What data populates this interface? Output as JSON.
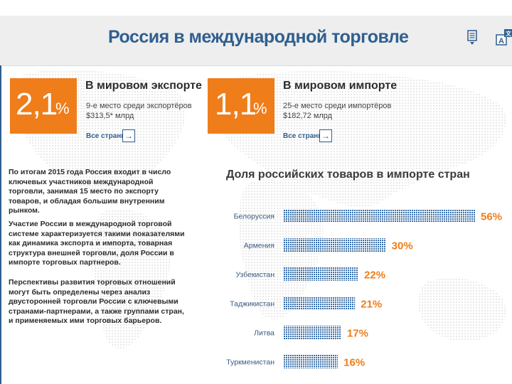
{
  "page": {
    "title": "Россия в международной торговле"
  },
  "export": {
    "pct_number": "2,1",
    "pct_sign": "%",
    "title": "В мировом экспорте",
    "line1": "9-е место среди экспортёров",
    "line2": "$313,5* млрд",
    "link": "Все страны"
  },
  "import": {
    "pct_number": "1,1",
    "pct_sign": "%",
    "title": "В мировом импорте",
    "line1": "25-е место среди импортёров",
    "line2": "$182,72 млрд",
    "link": "Все страны"
  },
  "paragraphs": [
    "По итогам 2015 года Россия входит в число ключевых участников международной торговли, занимая 15 место по экспорту товаров, и обладая большим внутренним рынком.",
    "Участие России в международной торговой системе характеризуется такими показателями как динамика экспорта и импорта, товарная структура внешней торговли, доля России в импорте торговых партнеров.",
    "Перспективы развития торговых отношений могут быть определены через анализ двусторонней торговли России с ключевыми странами-партнерами, а также группами стран, и применяемых ими торговых барьеров."
  ],
  "colors": {
    "accent": "#ef7d1a",
    "brand": "#2f5f8f",
    "bar": "#3a6ea5"
  },
  "icons": [
    "document-icon",
    "language-icon",
    "arrow-right-icon"
  ],
  "chart_data": {
    "type": "bar",
    "orientation": "horizontal",
    "title": "Доля российских товаров в импорте стран",
    "categories": [
      "Белоруссия",
      "Армения",
      "Узбекистан",
      "Таджикистан",
      "Литва",
      "Туркменистан"
    ],
    "values": [
      56,
      30,
      22,
      21,
      17,
      16
    ],
    "value_labels": [
      "56%",
      "30%",
      "22%",
      "21%",
      "17%",
      "16%"
    ],
    "unit": "%",
    "xlim": [
      0,
      56
    ],
    "grid": false
  }
}
